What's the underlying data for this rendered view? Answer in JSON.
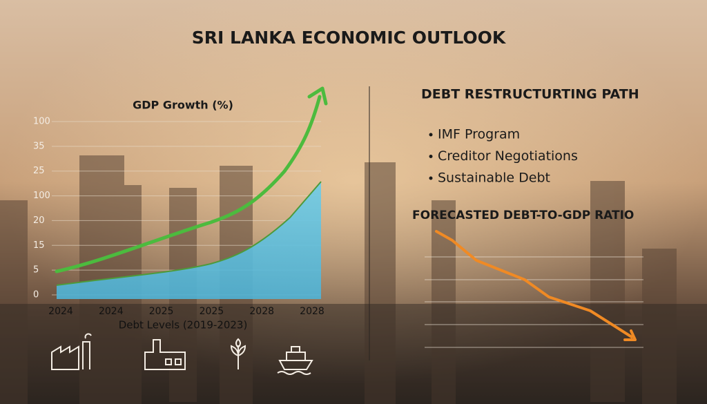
{
  "title": "SRI LANKA ECONOMIC OUTLOOK",
  "left_panel": {
    "chart_title": "GDP Growth (%)",
    "y_axis_labels": [
      "100",
      "35",
      "25",
      "100",
      "20",
      "15",
      "5",
      "0"
    ],
    "x_axis_labels": [
      "2024",
      "2024",
      "2025",
      "2025",
      "2028",
      "2028"
    ],
    "x_axis_title": "Debt Levels (2019-2023)"
  },
  "right_panel": {
    "heading": "DEBT RESTRUCTURTING PATH",
    "bullets": [
      "IMF Program",
      "Creditor Negotiations",
      "Sustainable Debt"
    ],
    "chart_title": "FORECASTED DEBT-TO-GDP RATIO"
  }
}
